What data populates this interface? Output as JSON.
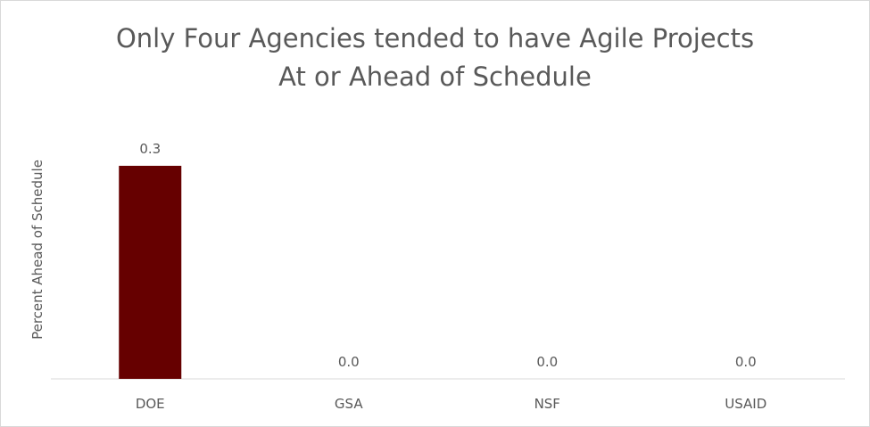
{
  "chart_data": {
    "type": "bar",
    "title": [
      "Only Four Agencies tended to have Agile Projects",
      "At or Ahead of Schedule"
    ],
    "xlabel": "",
    "ylabel": "Percent Ahead of Schedule",
    "categories": [
      "DOE",
      "GSA",
      "NSF",
      "USAID"
    ],
    "values": [
      0.3,
      0.0,
      0.0,
      0.0
    ],
    "data_labels": [
      "0.3",
      "0.0",
      "0.0",
      "0.0"
    ],
    "ylim": [
      0,
      0.3
    ],
    "grid": false,
    "legend": "none",
    "bar_color": "#660000"
  }
}
